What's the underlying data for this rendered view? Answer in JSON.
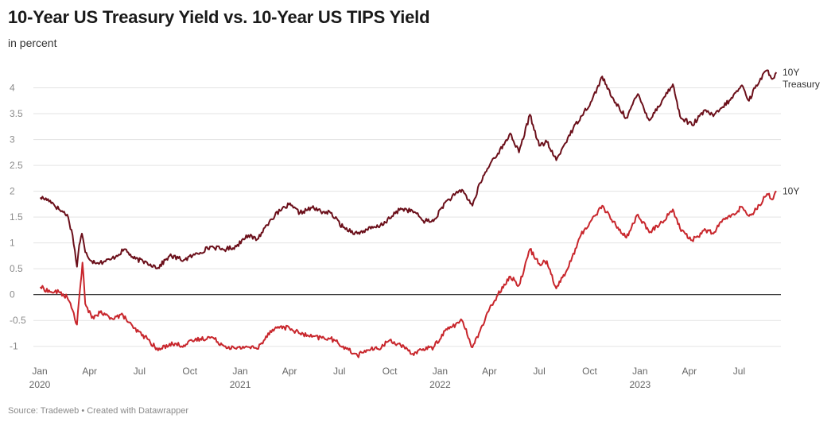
{
  "header": {
    "title": "10-Year US Treasury Yield vs. 10-Year US TIPS Yield",
    "subtitle": "in percent"
  },
  "footer": {
    "source": "Source: Tradeweb • Created with Datawrapper"
  },
  "chart_data": {
    "type": "line",
    "title": "10-Year US Treasury Yield vs. 10-Year US TIPS Yield",
    "subtitle": "in percent",
    "ylim": [
      -1.25,
      4.5
    ],
    "yticks": [
      -1,
      -0.5,
      0,
      0.5,
      1,
      1.5,
      2,
      2.5,
      3,
      3.5,
      4
    ],
    "xlim": [
      "2020-01-01",
      "2023-09-08"
    ],
    "xticks": [
      {
        "date": "2020-01-01",
        "label": "Jan",
        "year": "2020"
      },
      {
        "date": "2020-04-01",
        "label": "Apr",
        "year": ""
      },
      {
        "date": "2020-07-01",
        "label": "Jul",
        "year": ""
      },
      {
        "date": "2020-10-01",
        "label": "Oct",
        "year": ""
      },
      {
        "date": "2021-01-01",
        "label": "Jan",
        "year": "2021"
      },
      {
        "date": "2021-04-01",
        "label": "Apr",
        "year": ""
      },
      {
        "date": "2021-07-01",
        "label": "Jul",
        "year": ""
      },
      {
        "date": "2021-10-01",
        "label": "Oct",
        "year": ""
      },
      {
        "date": "2022-01-01",
        "label": "Jan",
        "year": "2022"
      },
      {
        "date": "2022-04-01",
        "label": "Apr",
        "year": ""
      },
      {
        "date": "2022-07-01",
        "label": "Jul",
        "year": ""
      },
      {
        "date": "2022-10-01",
        "label": "Oct",
        "year": ""
      },
      {
        "date": "2023-01-01",
        "label": "Jan",
        "year": "2023"
      },
      {
        "date": "2023-04-01",
        "label": "Apr",
        "year": ""
      },
      {
        "date": "2023-07-01",
        "label": "Jul",
        "year": ""
      }
    ],
    "zero_line": true,
    "grid": true,
    "legend": "direct labels at line ends (right)",
    "series": [
      {
        "name": "10Y Treasury",
        "label_lines": [
          "10Y",
          "Treasury"
        ],
        "color": "#6b0f1a",
        "points": [
          [
            "2020-01-02",
            1.88
          ],
          [
            "2020-01-20",
            1.82
          ],
          [
            "2020-02-05",
            1.65
          ],
          [
            "2020-02-20",
            1.55
          ],
          [
            "2020-03-01",
            1.15
          ],
          [
            "2020-03-09",
            0.54
          ],
          [
            "2020-03-13",
            0.96
          ],
          [
            "2020-03-18",
            1.18
          ],
          [
            "2020-03-24",
            0.82
          ],
          [
            "2020-04-05",
            0.65
          ],
          [
            "2020-04-20",
            0.62
          ],
          [
            "2020-05-10",
            0.68
          ],
          [
            "2020-06-05",
            0.88
          ],
          [
            "2020-06-20",
            0.7
          ],
          [
            "2020-07-15",
            0.62
          ],
          [
            "2020-08-04",
            0.52
          ],
          [
            "2020-08-25",
            0.75
          ],
          [
            "2020-09-20",
            0.67
          ],
          [
            "2020-10-10",
            0.77
          ],
          [
            "2020-11-09",
            0.93
          ],
          [
            "2020-12-01",
            0.87
          ],
          [
            "2020-12-25",
            0.93
          ],
          [
            "2021-01-12",
            1.15
          ],
          [
            "2021-02-01",
            1.07
          ],
          [
            "2021-02-25",
            1.45
          ],
          [
            "2021-03-15",
            1.62
          ],
          [
            "2021-03-31",
            1.74
          ],
          [
            "2021-04-20",
            1.58
          ],
          [
            "2021-05-12",
            1.68
          ],
          [
            "2021-06-01",
            1.6
          ],
          [
            "2021-06-15",
            1.58
          ],
          [
            "2021-07-08",
            1.3
          ],
          [
            "2021-08-03",
            1.18
          ],
          [
            "2021-08-20",
            1.26
          ],
          [
            "2021-09-10",
            1.31
          ],
          [
            "2021-10-01",
            1.47
          ],
          [
            "2021-10-21",
            1.67
          ],
          [
            "2021-11-15",
            1.6
          ],
          [
            "2021-12-01",
            1.43
          ],
          [
            "2021-12-20",
            1.42
          ],
          [
            "2022-01-10",
            1.78
          ],
          [
            "2022-02-10",
            2.03
          ],
          [
            "2022-03-01",
            1.72
          ],
          [
            "2022-03-15",
            2.16
          ],
          [
            "2022-04-05",
            2.58
          ],
          [
            "2022-04-28",
            2.9
          ],
          [
            "2022-05-09",
            3.12
          ],
          [
            "2022-05-25",
            2.75
          ],
          [
            "2022-06-14",
            3.48
          ],
          [
            "2022-07-01",
            2.88
          ],
          [
            "2022-07-15",
            2.95
          ],
          [
            "2022-08-01",
            2.6
          ],
          [
            "2022-08-22",
            3.03
          ],
          [
            "2022-09-15",
            3.45
          ],
          [
            "2022-10-05",
            3.75
          ],
          [
            "2022-10-24",
            4.22
          ],
          [
            "2022-11-10",
            3.82
          ],
          [
            "2022-12-07",
            3.42
          ],
          [
            "2022-12-28",
            3.88
          ],
          [
            "2023-01-18",
            3.37
          ],
          [
            "2023-02-10",
            3.75
          ],
          [
            "2023-03-02",
            4.07
          ],
          [
            "2023-03-15",
            3.45
          ],
          [
            "2023-04-06",
            3.28
          ],
          [
            "2023-05-01",
            3.57
          ],
          [
            "2023-05-15",
            3.45
          ],
          [
            "2023-06-01",
            3.63
          ],
          [
            "2023-06-15",
            3.77
          ],
          [
            "2023-07-06",
            4.05
          ],
          [
            "2023-07-19",
            3.75
          ],
          [
            "2023-08-01",
            4.05
          ],
          [
            "2023-08-21",
            4.34
          ],
          [
            "2023-09-01",
            4.18
          ],
          [
            "2023-09-07",
            4.3
          ]
        ]
      },
      {
        "name": "10Y",
        "label_lines": [
          "10Y"
        ],
        "color": "#c8262c",
        "points": [
          [
            "2020-01-02",
            0.15
          ],
          [
            "2020-01-20",
            0.05
          ],
          [
            "2020-02-05",
            0.05
          ],
          [
            "2020-02-20",
            -0.05
          ],
          [
            "2020-03-01",
            -0.3
          ],
          [
            "2020-03-09",
            -0.58
          ],
          [
            "2020-03-14",
            0.05
          ],
          [
            "2020-03-19",
            0.62
          ],
          [
            "2020-03-24",
            -0.18
          ],
          [
            "2020-04-05",
            -0.45
          ],
          [
            "2020-04-20",
            -0.35
          ],
          [
            "2020-05-10",
            -0.45
          ],
          [
            "2020-06-01",
            -0.4
          ],
          [
            "2020-06-20",
            -0.65
          ],
          [
            "2020-07-15",
            -0.85
          ],
          [
            "2020-08-04",
            -1.08
          ],
          [
            "2020-08-25",
            -0.95
          ],
          [
            "2020-09-20",
            -0.98
          ],
          [
            "2020-10-10",
            -0.88
          ],
          [
            "2020-11-09",
            -0.82
          ],
          [
            "2020-12-01",
            -0.98
          ],
          [
            "2020-12-25",
            -1.05
          ],
          [
            "2021-01-12",
            -1.0
          ],
          [
            "2021-02-01",
            -1.05
          ],
          [
            "2021-02-25",
            -0.7
          ],
          [
            "2021-03-15",
            -0.62
          ],
          [
            "2021-04-01",
            -0.65
          ],
          [
            "2021-04-20",
            -0.75
          ],
          [
            "2021-05-12",
            -0.82
          ],
          [
            "2021-06-15",
            -0.85
          ],
          [
            "2021-07-08",
            -1.0
          ],
          [
            "2021-08-03",
            -1.18
          ],
          [
            "2021-08-20",
            -1.07
          ],
          [
            "2021-09-10",
            -1.05
          ],
          [
            "2021-10-01",
            -0.88
          ],
          [
            "2021-10-21",
            -0.98
          ],
          [
            "2021-11-10",
            -1.15
          ],
          [
            "2021-12-01",
            -1.05
          ],
          [
            "2021-12-20",
            -1.02
          ],
          [
            "2022-01-10",
            -0.7
          ],
          [
            "2022-02-10",
            -0.5
          ],
          [
            "2022-03-01",
            -1.02
          ],
          [
            "2022-03-15",
            -0.7
          ],
          [
            "2022-04-05",
            -0.2
          ],
          [
            "2022-04-28",
            0.2
          ],
          [
            "2022-05-09",
            0.35
          ],
          [
            "2022-05-25",
            0.18
          ],
          [
            "2022-06-14",
            0.88
          ],
          [
            "2022-07-01",
            0.6
          ],
          [
            "2022-07-15",
            0.65
          ],
          [
            "2022-08-01",
            0.12
          ],
          [
            "2022-08-22",
            0.5
          ],
          [
            "2022-09-15",
            1.15
          ],
          [
            "2022-10-05",
            1.45
          ],
          [
            "2022-10-24",
            1.72
          ],
          [
            "2022-11-10",
            1.45
          ],
          [
            "2022-12-07",
            1.1
          ],
          [
            "2022-12-28",
            1.55
          ],
          [
            "2023-01-18",
            1.2
          ],
          [
            "2023-02-10",
            1.4
          ],
          [
            "2023-03-02",
            1.65
          ],
          [
            "2023-03-15",
            1.28
          ],
          [
            "2023-04-06",
            1.05
          ],
          [
            "2023-05-01",
            1.25
          ],
          [
            "2023-05-15",
            1.18
          ],
          [
            "2023-06-01",
            1.45
          ],
          [
            "2023-06-15",
            1.5
          ],
          [
            "2023-07-06",
            1.7
          ],
          [
            "2023-07-19",
            1.52
          ],
          [
            "2023-08-01",
            1.65
          ],
          [
            "2023-08-21",
            1.95
          ],
          [
            "2023-09-01",
            1.85
          ],
          [
            "2023-09-07",
            2.0
          ]
        ]
      }
    ]
  }
}
